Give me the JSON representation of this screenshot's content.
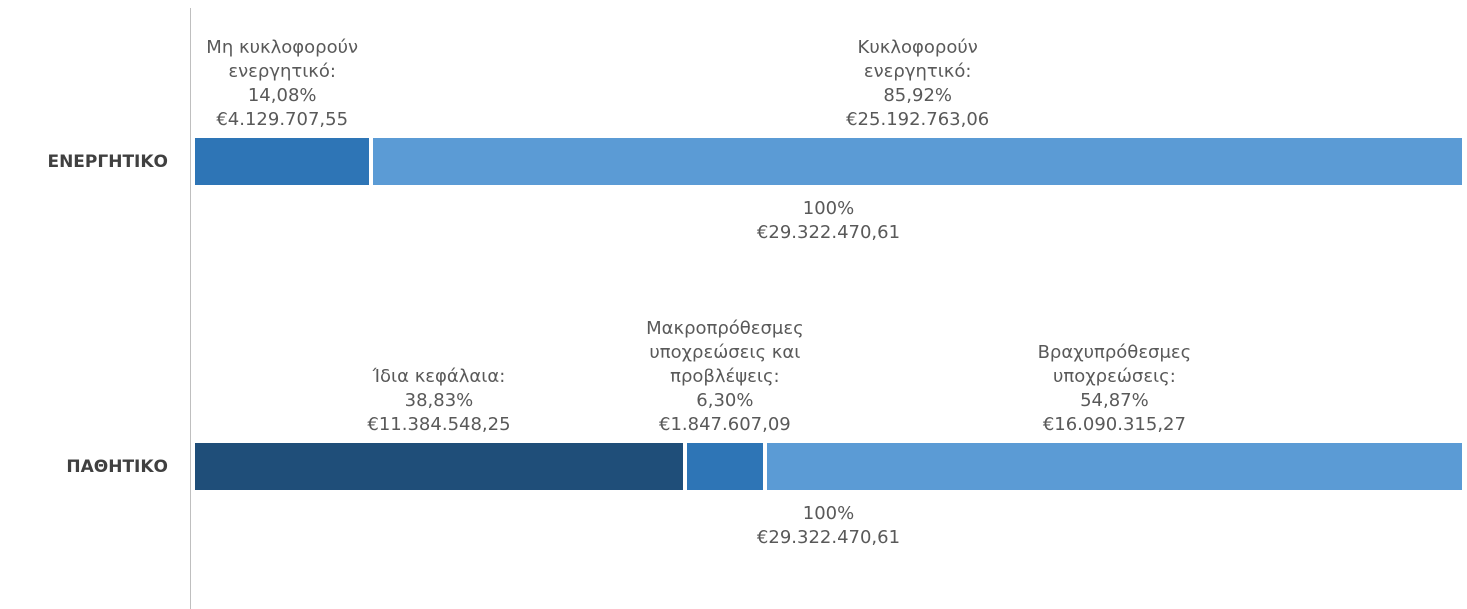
{
  "chart_data": {
    "type": "bar",
    "orientation": "horizontal",
    "stacked": true,
    "xlim": [
      0,
      100
    ],
    "bars": [
      {
        "category": "ΕΝΕΡΓΗΤΙΚΟ",
        "segments": [
          {
            "name": "Μη κυκλοφορούν ενεργητικό:",
            "color": "#2e75b6",
            "value": 14.08,
            "value_label": "14,08%",
            "amount": 4129707.55,
            "amount_label": "€4.129.707,55"
          },
          {
            "name": "Κυκλοφορούν ενεργητικό:",
            "color": "#5b9bd5",
            "value": 85.92,
            "value_label": "85,92%",
            "amount": 25192763.06,
            "amount_label": "€25.192.763,06"
          }
        ],
        "total": 100,
        "total_label": "100%",
        "total_amount": 29322470.61,
        "total_amount_label": "€29.322.470,61"
      },
      {
        "category": "ΠΑΘΗΤΙΚΟ",
        "segments": [
          {
            "name": "Ίδια κεφάλαια:",
            "color": "#1f4e79",
            "value": 38.83,
            "value_label": "38,83%",
            "amount": 11384548.25,
            "amount_label": "€11.384.548,25"
          },
          {
            "name": "Μακροπρόθεσμες υποχρεώσεις και προβλέψεις:",
            "color": "#2e75b6",
            "value": 6.3,
            "value_label": "6,30%",
            "amount": 1847607.09,
            "amount_label": "€1.847.607,09"
          },
          {
            "name": "Βραχυπρόθεσμες υποχρεώσεις:",
            "color": "#5b9bd5",
            "value": 54.87,
            "value_label": "54,87%",
            "amount": 16090315.27,
            "amount_label": "€16.090.315,27"
          }
        ],
        "total": 100,
        "total_label": "100%",
        "total_amount": 29322470.61,
        "total_amount_label": "€29.322.470,61"
      }
    ]
  }
}
